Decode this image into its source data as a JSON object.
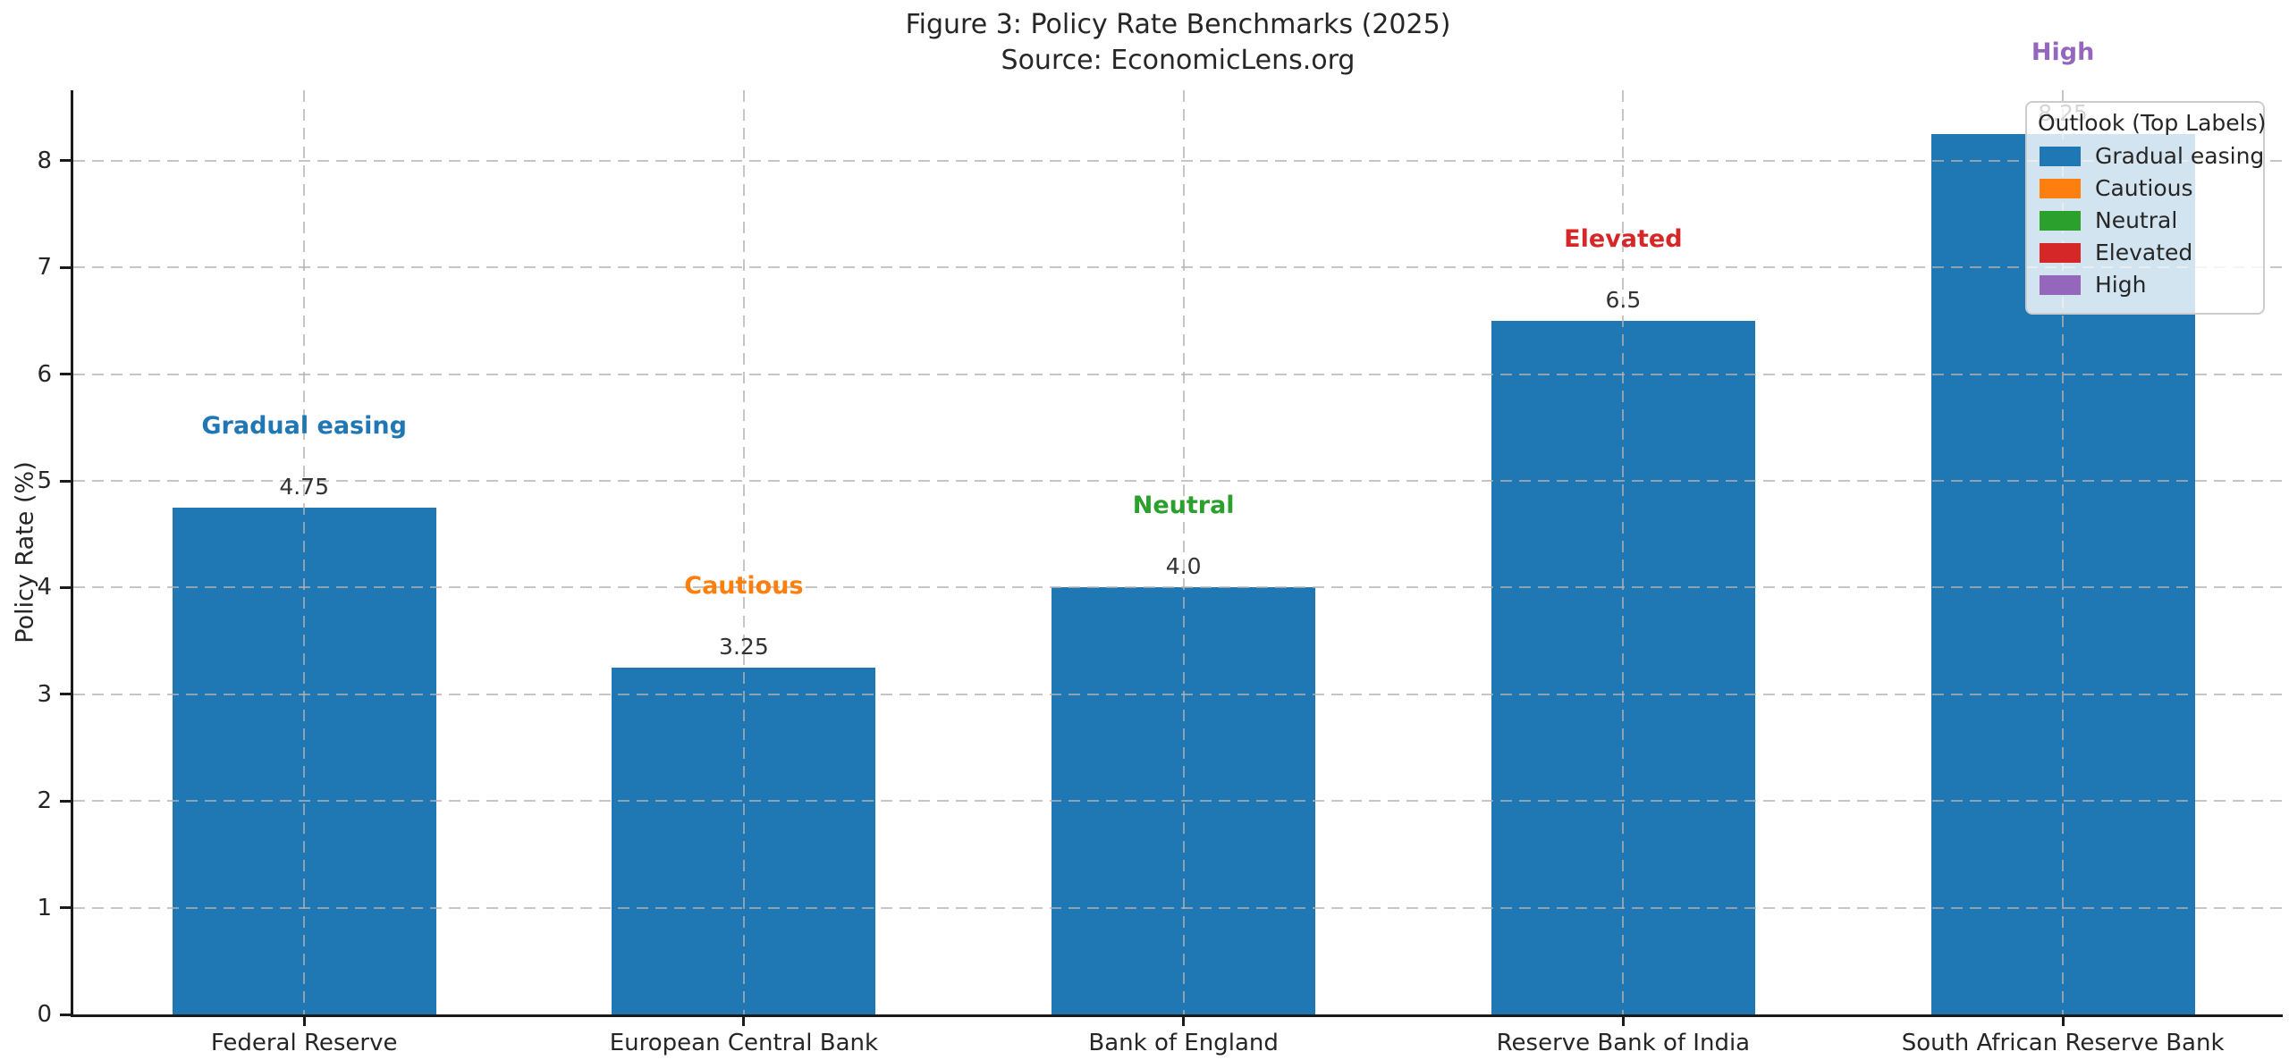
{
  "chart_data": {
    "type": "bar",
    "title": "Figure 3: Policy Rate Benchmarks (2025)",
    "subtitle": "Source: EconomicLens.org",
    "xlabel": "",
    "ylabel": "Policy Rate (%)",
    "categories": [
      "Federal Reserve",
      "European Central Bank",
      "Bank of England",
      "Reserve Bank of India",
      "South African Reserve Bank"
    ],
    "values": [
      4.75,
      3.25,
      4.0,
      6.5,
      8.25
    ],
    "value_labels": [
      "4.75",
      "3.25",
      "4.0",
      "6.5",
      "8.25"
    ],
    "bar_color": "#1f77b4",
    "outlook_labels": [
      {
        "label": "Gradual easing",
        "color": "#1f77b4"
      },
      {
        "label": "Cautious",
        "color": "#ff7f0e"
      },
      {
        "label": "Neutral",
        "color": "#2ca02c"
      },
      {
        "label": "Elevated",
        "color": "#d62728"
      },
      {
        "label": "High",
        "color": "#9467bd"
      }
    ],
    "ylim": [
      0,
      8.66
    ],
    "yticks": [
      0,
      1,
      2,
      3,
      4,
      5,
      6,
      7,
      8
    ],
    "xlim": [
      -0.525,
      4.5
    ],
    "bar_width_units": 0.6,
    "grid": {
      "linestyle": "dashed",
      "color": "#b2b2b2",
      "axes": "both",
      "drawn_above_bars": true
    },
    "legend": {
      "title": "Outlook (Top Labels)",
      "position": "upper right",
      "items": [
        {
          "label": "Gradual easing",
          "color": "#1f77b4"
        },
        {
          "label": "Cautious",
          "color": "#ff7f0e"
        },
        {
          "label": "Neutral",
          "color": "#2ca02c"
        },
        {
          "label": "Elevated",
          "color": "#d62728"
        },
        {
          "label": "High",
          "color": "#9467bd"
        }
      ]
    }
  }
}
